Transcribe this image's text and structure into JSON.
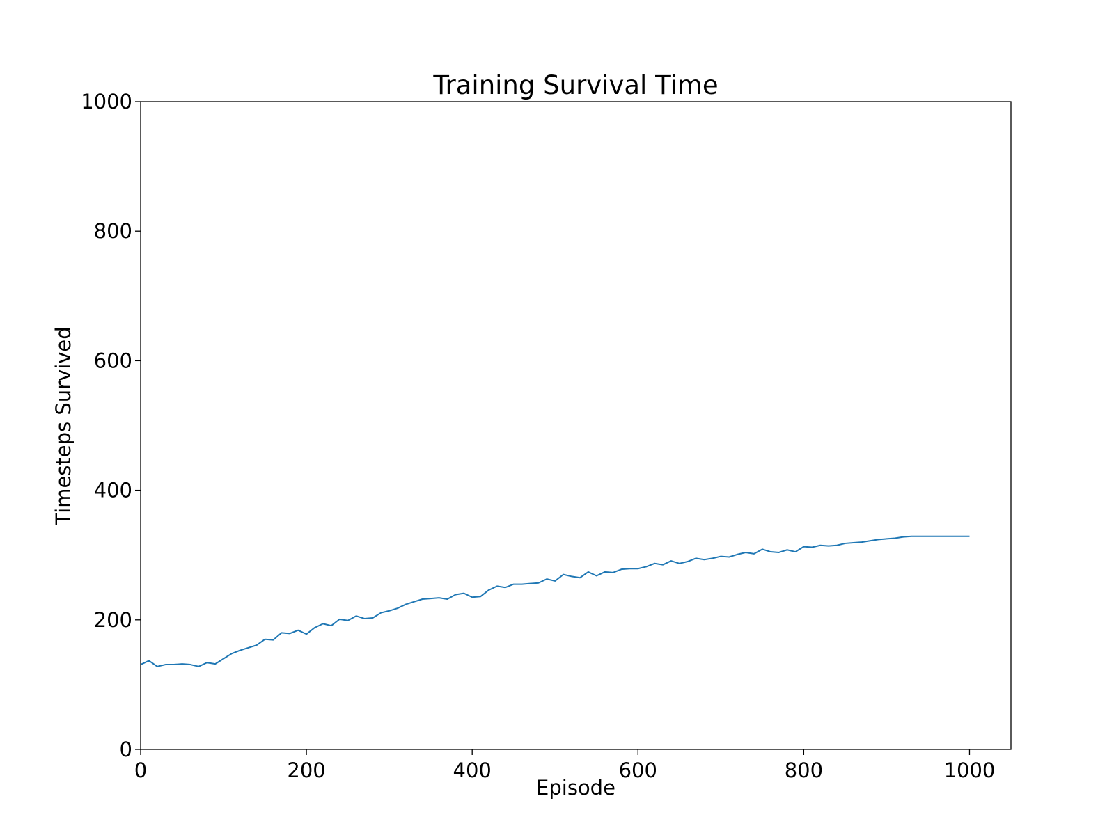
{
  "chart_data": {
    "type": "line",
    "title": "Training Survival Time",
    "xlabel": "Episode",
    "ylabel": "Timesteps Survived",
    "xlim": [
      0,
      1050
    ],
    "ylim": [
      0,
      1000
    ],
    "xticks": [
      0,
      200,
      400,
      600,
      800,
      1000
    ],
    "xtick_labels": [
      "0",
      "200",
      "400",
      "600",
      "800",
      "1000"
    ],
    "yticks": [
      0,
      200,
      400,
      600,
      800,
      1000
    ],
    "ytick_labels": [
      "0",
      "200",
      "400",
      "600",
      "800",
      "1000"
    ],
    "grid": false,
    "legend": "none",
    "series": [
      {
        "color": "#1f77b4",
        "x": [
          0,
          10,
          20,
          30,
          40,
          50,
          60,
          70,
          80,
          90,
          100,
          110,
          120,
          130,
          140,
          150,
          160,
          170,
          180,
          190,
          200,
          210,
          220,
          230,
          240,
          250,
          260,
          270,
          280,
          290,
          300,
          310,
          320,
          330,
          340,
          350,
          360,
          370,
          380,
          390,
          400,
          410,
          420,
          430,
          440,
          450,
          460,
          470,
          480,
          490,
          500,
          510,
          520,
          530,
          540,
          550,
          560,
          570,
          580,
          590,
          600,
          610,
          620,
          630,
          640,
          650,
          660,
          670,
          680,
          690,
          700,
          710,
          720,
          730,
          740,
          750,
          760,
          770,
          780,
          790,
          800,
          810,
          820,
          830,
          840,
          850,
          860,
          870,
          880,
          890,
          900,
          910,
          920,
          930,
          940,
          950,
          960,
          970,
          980,
          990,
          1000
        ],
        "y": [
          131,
          137,
          128,
          131,
          131,
          132,
          131,
          128,
          134,
          132,
          140,
          148,
          153,
          157,
          161,
          170,
          169,
          180,
          179,
          184,
          178,
          188,
          194,
          191,
          201,
          199,
          206,
          202,
          203,
          211,
          214,
          218,
          224,
          228,
          232,
          233,
          234,
          232,
          239,
          241,
          235,
          236,
          246,
          252,
          250,
          255,
          255,
          256,
          257,
          263,
          260,
          270,
          267,
          265,
          274,
          268,
          274,
          273,
          278,
          279,
          279,
          282,
          287,
          285,
          291,
          287,
          290,
          295,
          293,
          295,
          298,
          297,
          301,
          304,
          302,
          309,
          305,
          304,
          308,
          305,
          313,
          312,
          315,
          314,
          315,
          318,
          319,
          320,
          322,
          324,
          325,
          326,
          328,
          329,
          329,
          329,
          329,
          329,
          329,
          329,
          329
        ]
      }
    ]
  }
}
